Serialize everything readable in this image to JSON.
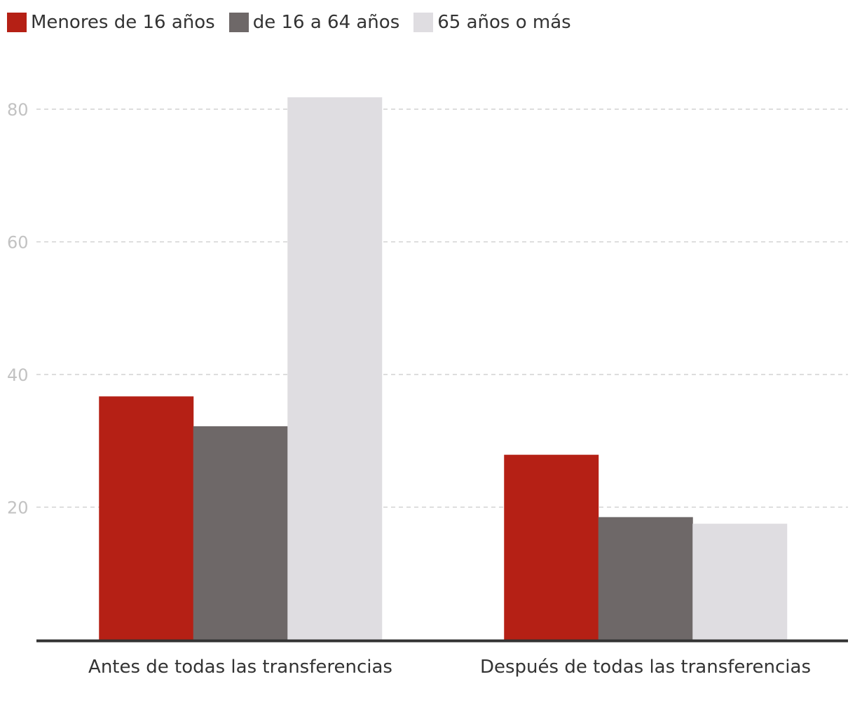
{
  "chart_data": {
    "type": "bar",
    "categories": [
      "Antes de todas las transferencias",
      "Después de todas las transferencias"
    ],
    "series": [
      {
        "name": "Menores de 16 años",
        "color": "#b52015",
        "values": [
          36.7,
          27.9
        ]
      },
      {
        "name": "de 16 a 64 años",
        "color": "#6e6868",
        "values": [
          32.2,
          18.5
        ]
      },
      {
        "name": "65 años o más",
        "color": "#dfdde1",
        "values": [
          81.8,
          17.5
        ]
      }
    ],
    "yticks": [
      20,
      40,
      60,
      80
    ],
    "ylim": [
      0,
      85
    ],
    "grid": true,
    "legend_position": "top-left",
    "title": "",
    "xlabel": "",
    "ylabel": ""
  }
}
